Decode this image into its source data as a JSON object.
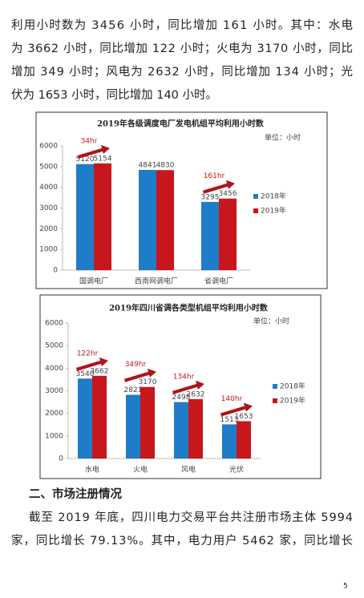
{
  "text_top": [
    "利用小时数为 3456 小时，同比增加 161 小时。其中：水电",
    "为 3662 小时，同比增加 122 小时；火电为 3170 小时，同比",
    "增加 349 小时；风电为 2632 小时，同比增加 134 小时；光",
    "伏为 1653 小时，同比增加 140 小时。"
  ],
  "chart_data": [
    {
      "type": "bar",
      "title": "2019年各级调度电厂发电机组平均利用小时数",
      "unit": "单位：小时",
      "categories": [
        "国调电厂",
        "西南网调电厂",
        "省调电厂"
      ],
      "series": [
        {
          "name": "2018年",
          "color": "#1f7cc8",
          "values": [
            5120,
            4841,
            3295
          ]
        },
        {
          "name": "2019年",
          "color": "#c8161d",
          "values": [
            5154,
            4830,
            3456
          ]
        }
      ],
      "annotations": [
        "34hr",
        null,
        "161hr"
      ],
      "ylim": [
        0,
        6000
      ],
      "yticks": [
        0,
        1000,
        2000,
        3000,
        4000,
        5000,
        6000
      ],
      "legend": "right"
    },
    {
      "type": "bar",
      "title": "2019年四川省调各类型机组平均利用小时数",
      "unit": "单位：小时",
      "categories": [
        "水电",
        "火电",
        "风电",
        "光伏"
      ],
      "series": [
        {
          "name": "2018年",
          "color": "#1f7cc8",
          "values": [
            3540,
            2821,
            2498,
            1513
          ]
        },
        {
          "name": "2019年",
          "color": "#c8161d",
          "values": [
            3662,
            3170,
            2632,
            1653
          ]
        }
      ],
      "annotations": [
        "122hr",
        "349hr",
        "134hr",
        "140hr"
      ],
      "ylim": [
        0,
        6000
      ],
      "yticks": [
        0,
        1000,
        2000,
        3000,
        4000,
        5000,
        6000
      ],
      "legend": "right"
    }
  ],
  "heading": "二、市场注册情况",
  "text_bottom": [
    "截至 2019 年底，四川电力交易平台共注册市场主体 5994",
    "家，同比增长 79.13%。其中，电力用户 5462 家，同比增长"
  ],
  "page_number": "5"
}
